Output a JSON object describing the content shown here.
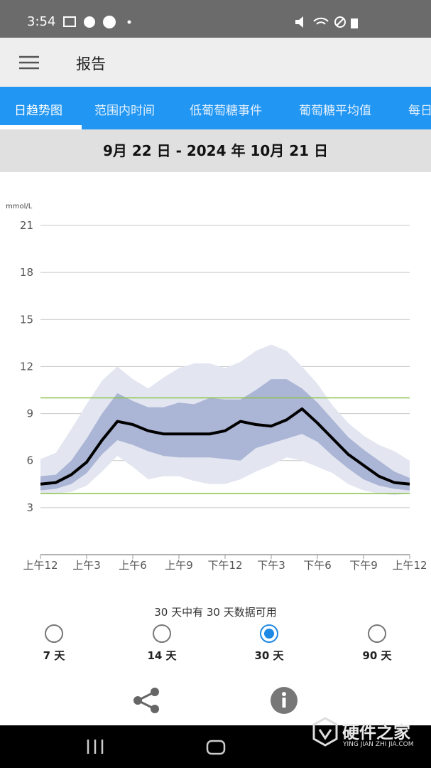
{
  "status_bar": {
    "time": "3:54"
  },
  "app_bar": {
    "title": "报告"
  },
  "tabs": {
    "items": [
      "日趋势图",
      "范围内时间",
      "低葡萄糖事件",
      "葡萄糖平均值",
      "每日"
    ],
    "selected": 0
  },
  "date_range": "9月 22 日 - 2024 年 10月 21 日",
  "chart_data": {
    "type": "agp",
    "y_unit": "mmol/L",
    "x": [
      0,
      1,
      2,
      3,
      4,
      5,
      6,
      7,
      8,
      9,
      10,
      11,
      12,
      13,
      14,
      15,
      16,
      17,
      18,
      19,
      20,
      21,
      22,
      23,
      24
    ],
    "xlim": [
      0,
      24
    ],
    "xticks": [
      {
        "value": 0,
        "label": "上午12"
      },
      {
        "value": 3,
        "label": "上午3"
      },
      {
        "value": 6,
        "label": "上午6"
      },
      {
        "value": 9,
        "label": "上午9"
      },
      {
        "value": 12,
        "label": "下午12"
      },
      {
        "value": 15,
        "label": "下午3"
      },
      {
        "value": 18,
        "label": "下午6"
      },
      {
        "value": 21,
        "label": "下午9"
      },
      {
        "value": 24,
        "label": "上午12"
      }
    ],
    "ylim": [
      0,
      21
    ],
    "yticks": [
      3,
      6,
      9,
      12,
      15,
      18,
      21
    ],
    "grid": true,
    "bands": [
      {
        "color": "#e3e6f1",
        "upper": [
          6.1,
          6.5,
          8.0,
          9.6,
          11.1,
          12.0,
          11.2,
          10.6,
          11.3,
          11.9,
          12.2,
          12.2,
          11.9,
          12.3,
          13.0,
          13.4,
          13.0,
          12.0,
          10.9,
          9.5,
          8.4,
          7.6,
          7.0,
          6.6,
          6.0
        ],
        "lower": [
          3.9,
          3.9,
          4.0,
          4.4,
          5.3,
          6.3,
          5.6,
          4.8,
          5.0,
          5.0,
          4.7,
          4.5,
          4.5,
          4.8,
          5.3,
          5.7,
          6.2,
          6.0,
          5.6,
          5.2,
          4.5,
          4.1,
          3.9,
          3.8,
          3.9
        ]
      },
      {
        "color": "#abb5d5",
        "upper": [
          5.0,
          5.1,
          6.0,
          7.4,
          9.0,
          10.3,
          9.8,
          9.4,
          9.4,
          9.7,
          9.6,
          10.0,
          9.9,
          9.9,
          10.5,
          11.2,
          11.2,
          10.6,
          9.7,
          8.6,
          7.5,
          6.7,
          6.0,
          5.3,
          4.9
        ],
        "lower": [
          4.1,
          4.2,
          4.5,
          5.2,
          6.4,
          7.3,
          7.0,
          6.6,
          6.3,
          6.2,
          6.2,
          6.2,
          6.1,
          6.0,
          6.8,
          7.1,
          7.4,
          7.7,
          7.2,
          6.3,
          5.5,
          4.8,
          4.4,
          4.2,
          4.1
        ]
      }
    ],
    "series": [
      {
        "color": "#000000",
        "values": [
          4.5,
          4.6,
          5.1,
          5.9,
          7.3,
          8.5,
          8.3,
          7.9,
          7.7,
          7.7,
          7.7,
          7.7,
          7.9,
          8.5,
          8.3,
          8.2,
          8.6,
          9.3,
          8.4,
          7.4,
          6.4,
          5.7,
          5.0,
          4.6,
          4.5
        ]
      }
    ],
    "target_lines": {
      "color": "#8bc34a",
      "values": [
        3.9,
        10
      ]
    }
  },
  "availability": "30 天中有 30 天数据可用",
  "periods": {
    "options": [
      "7 天",
      "14 天",
      "30 天",
      "90 天"
    ],
    "selected": 2
  },
  "watermark": {
    "title": "硬件之家",
    "subtitle": "YING JIAN ZHI JIA.COM"
  }
}
